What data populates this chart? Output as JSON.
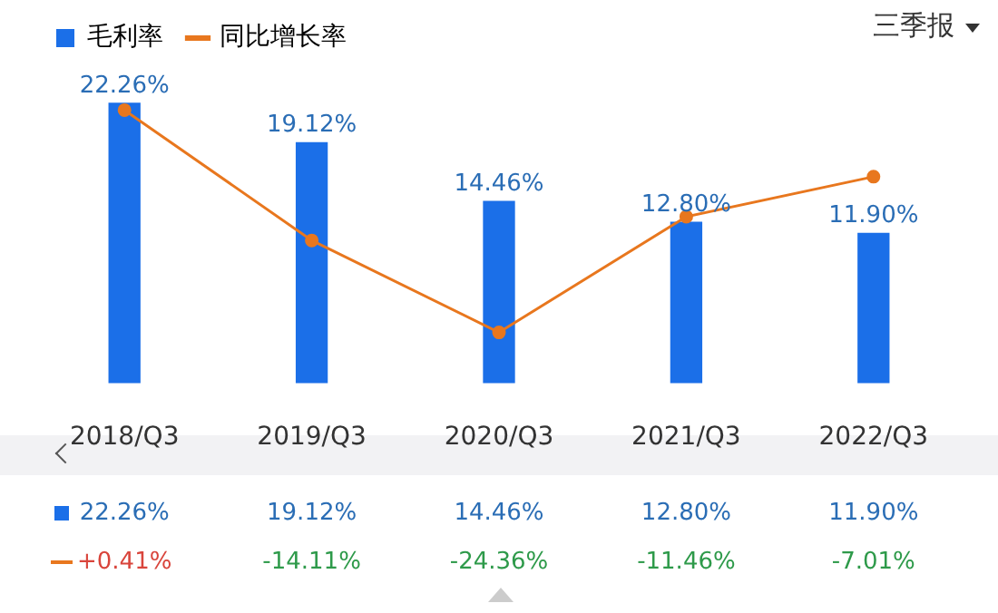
{
  "chart_data": {
    "type": "bar",
    "categories": [
      "2018/Q3",
      "2019/Q3",
      "2020/Q3",
      "2021/Q3",
      "2022/Q3"
    ],
    "series": [
      {
        "name": "毛利率",
        "color": "#1b6fe8",
        "values": [
          22.26,
          19.12,
          14.46,
          12.8,
          11.9
        ],
        "value_labels": [
          "22.26%",
          "19.12%",
          "14.46%",
          "12.80%",
          "11.90%"
        ]
      },
      {
        "name": "同比增长率",
        "type": "line",
        "axis": "y2",
        "color": "#e8771e",
        "values": [
          0.41,
          -14.11,
          -24.36,
          -11.46,
          -7.01
        ],
        "value_labels": [
          "+0.41%",
          "-14.11%",
          "-24.36%",
          "-11.46%",
          "-7.01%"
        ]
      }
    ],
    "tick_labels": "x",
    "grid": false,
    "legend": "top left",
    "marker": "circle",
    "annotations": [
      "三季报"
    ]
  }
}
